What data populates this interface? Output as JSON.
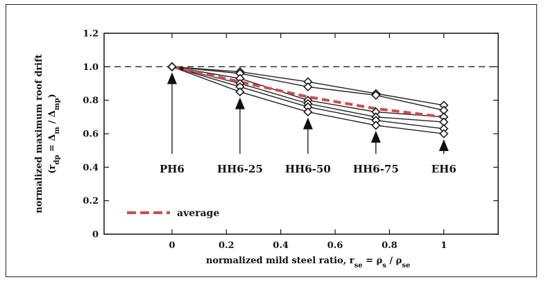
{
  "chart_data": {
    "type": "line",
    "xlabel_parts": {
      "text": "normalized mild steel ratio, ",
      "r": "r",
      "r_sub": "se",
      "eq": " = ρ",
      "p1_sub": "s",
      "slash": " / ρ",
      "p2_sub": "se"
    },
    "ylabel_line1": "normalized maximum roof drift",
    "ylabel_line2": "(r",
    "ylabel_line2_sub1": "dp",
    "ylabel_line2_mid": " = Δ",
    "ylabel_line2_sub2": "m",
    "ylabel_line2_mid2": " / Δ",
    "ylabel_line2_sub3": "mp",
    "ylabel_line2_end": ")",
    "xlim": [
      -0.25,
      1.2
    ],
    "ylim": [
      0,
      1.2
    ],
    "x_ticks": [
      "0",
      "0.2",
      "0.4",
      "0.6",
      "0.8",
      "1"
    ],
    "x_tick_values": [
      0,
      0.2,
      0.4,
      0.6,
      0.8,
      1.0
    ],
    "y_ticks": [
      "0",
      "0.2",
      "0.4",
      "0.6",
      "0.8",
      "1.0",
      "1.2"
    ],
    "y_tick_values": [
      0,
      0.2,
      0.4,
      0.6,
      0.8,
      1.0,
      1.2
    ],
    "reference_line": {
      "y": 1.0,
      "style": "dashed",
      "color": "#222222"
    },
    "x": [
      0,
      0.25,
      0.5,
      0.75,
      1.0
    ],
    "series": [
      {
        "values": [
          1.0,
          0.97,
          0.91,
          0.84,
          0.77
        ]
      },
      {
        "values": [
          1.0,
          0.96,
          0.88,
          0.83,
          0.74
        ]
      },
      {
        "values": [
          1.0,
          0.93,
          0.8,
          0.73,
          0.7
        ]
      },
      {
        "values": [
          1.0,
          0.9,
          0.78,
          0.7,
          0.67
        ]
      },
      {
        "values": [
          1.0,
          0.88,
          0.76,
          0.68,
          0.63
        ]
      },
      {
        "values": [
          1.0,
          0.85,
          0.73,
          0.65,
          0.6
        ]
      }
    ],
    "average": {
      "name": "average",
      "values": [
        1.0,
        0.91,
        0.82,
        0.75,
        0.7
      ],
      "color": "#d04a4a"
    },
    "annotations": [
      {
        "label": "PH6",
        "x": 0
      },
      {
        "label": "HH6-25",
        "x": 0.25
      },
      {
        "label": "HH6-50",
        "x": 0.5
      },
      {
        "label": "HH6-75",
        "x": 0.75
      },
      {
        "label": "EH6",
        "x": 1.0
      }
    ],
    "legend": {
      "position": "bottom-left",
      "entries": [
        "average"
      ]
    },
    "grid": false
  }
}
